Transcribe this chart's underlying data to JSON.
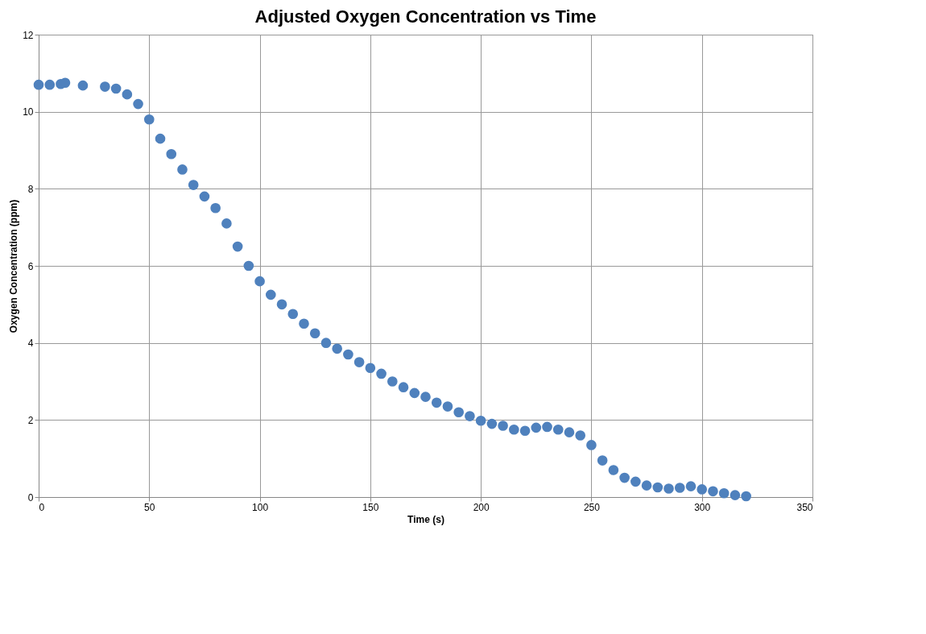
{
  "chart_data": {
    "type": "scatter",
    "title": "Adjusted Oxygen Concentration vs Time",
    "xlabel": "Time (s)",
    "ylabel": "Oxygen Concentration (ppm)",
    "x": [
      0,
      5,
      10,
      12,
      20,
      30,
      35,
      40,
      45,
      50,
      55,
      60,
      65,
      70,
      75,
      80,
      85,
      90,
      95,
      100,
      105,
      110,
      115,
      120,
      125,
      130,
      135,
      140,
      145,
      150,
      155,
      160,
      165,
      170,
      175,
      180,
      185,
      190,
      195,
      200,
      205,
      210,
      215,
      220,
      225,
      230,
      235,
      240,
      245,
      250,
      255,
      260,
      265,
      270,
      275,
      280,
      285,
      290,
      295,
      300,
      305,
      310,
      315,
      320
    ],
    "series": [
      {
        "color": "#4f81bd",
        "values": [
          10.7,
          10.7,
          10.72,
          10.75,
          10.68,
          10.65,
          10.6,
          10.45,
          10.2,
          9.8,
          9.3,
          8.9,
          8.5,
          8.1,
          7.8,
          7.5,
          7.1,
          6.5,
          6.0,
          5.6,
          5.25,
          5.0,
          4.75,
          4.5,
          4.25,
          4.0,
          3.85,
          3.7,
          3.5,
          3.35,
          3.2,
          3.0,
          2.85,
          2.7,
          2.6,
          2.45,
          2.35,
          2.2,
          2.1,
          1.98,
          1.9,
          1.85,
          1.75,
          1.72,
          1.8,
          1.82,
          1.75,
          1.68,
          1.6,
          1.35,
          0.95,
          0.7,
          0.5,
          0.4,
          0.3,
          0.25,
          0.22,
          0.24,
          0.28,
          0.2,
          0.15,
          0.1,
          0.05,
          0.02
        ]
      }
    ],
    "xlim": [
      0,
      350
    ],
    "xticks": [
      0,
      50,
      100,
      150,
      200,
      250,
      300,
      350
    ],
    "ylim": [
      0,
      12
    ],
    "yticks": [
      0,
      2,
      4,
      6,
      8,
      10,
      12
    ],
    "grid": true,
    "marker": "circle"
  }
}
